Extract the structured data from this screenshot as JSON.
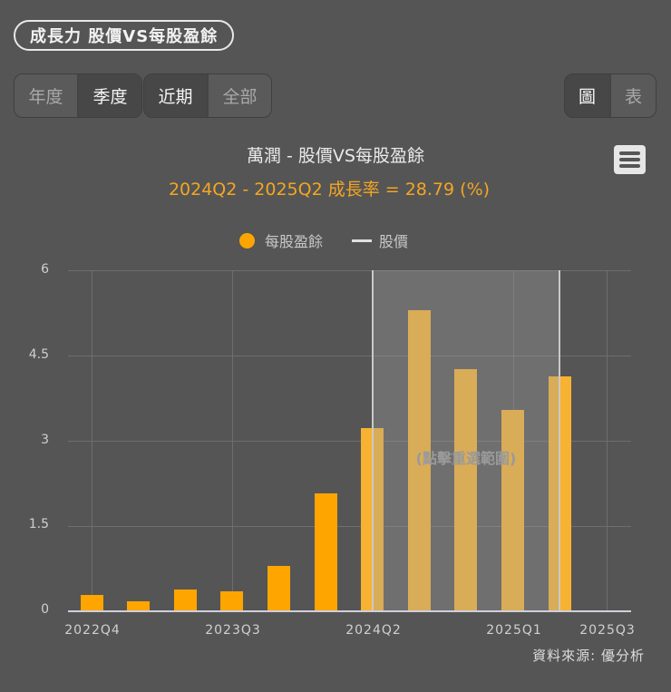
{
  "header": {
    "title": "成長力  股價VS每股盈餘"
  },
  "period_toggle": [
    {
      "label": "年度",
      "active": false
    },
    {
      "label": "季度",
      "active": true
    }
  ],
  "range_toggle": [
    {
      "label": "近期",
      "active": true
    },
    {
      "label": "全部",
      "active": false
    }
  ],
  "view_toggle": [
    {
      "label": "圖",
      "active": true
    },
    {
      "label": "表",
      "active": false
    }
  ],
  "menu_icon": "hamburger-menu-icon",
  "chart": {
    "title": "萬潤 - 股價VS每股盈餘",
    "subtitle": "2024Q2 - 2025Q2 成長率 = 28.79 (%)",
    "legend": [
      {
        "label": "每股盈餘",
        "icon": "circle",
        "color": "#ffa500"
      },
      {
        "label": "股價",
        "icon": "line",
        "color": "#e0e0e0"
      }
    ],
    "selection_hint": "(點擊重選範圍)",
    "source": "資料來源: 優分析"
  },
  "chart_data": {
    "type": "bar",
    "title": "萬潤 - 股價VS每股盈餘",
    "subtitle": "2024Q2 - 2025Q2 成長率 = 28.79 (%)",
    "xlabel": "",
    "ylabel": "",
    "categories": [
      "2022Q4",
      "2023Q1",
      "2023Q2",
      "2023Q3",
      "2023Q4",
      "2024Q1",
      "2024Q2",
      "2024Q3",
      "2024Q4",
      "2025Q1",
      "2025Q2",
      "2025Q3"
    ],
    "series": [
      {
        "name": "每股盈餘",
        "color": "#ffa500",
        "values": [
          0.27,
          0.16,
          0.37,
          0.34,
          0.79,
          2.06,
          3.22,
          5.3,
          4.25,
          3.54,
          4.13,
          null
        ]
      },
      {
        "name": "股價",
        "color": "#e0e0e0",
        "values": []
      }
    ],
    "x_tick_labels": [
      "2022Q4",
      "2023Q3",
      "2024Q2",
      "2025Q1",
      "2025Q3"
    ],
    "y_ticks": [
      "0",
      "1.5",
      "3",
      "4.5",
      "6"
    ],
    "ylim": [
      0,
      6
    ],
    "grid": true,
    "legend_position": "top",
    "selected_range": [
      "2024Q2",
      "2025Q2"
    ],
    "growth_rate_pct": 28.79
  }
}
